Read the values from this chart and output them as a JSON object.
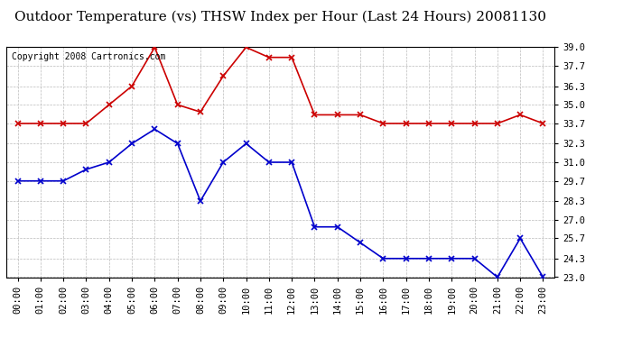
{
  "title": "Outdoor Temperature (vs) THSW Index per Hour (Last 24 Hours) 20081130",
  "copyright": "Copyright 2008 Cartronics.com",
  "hours": [
    "00:00",
    "01:00",
    "02:00",
    "03:00",
    "04:00",
    "05:00",
    "06:00",
    "07:00",
    "08:00",
    "09:00",
    "10:00",
    "11:00",
    "12:00",
    "13:00",
    "14:00",
    "15:00",
    "16:00",
    "17:00",
    "18:00",
    "19:00",
    "20:00",
    "21:00",
    "22:00",
    "23:00"
  ],
  "temp_blue": [
    29.7,
    29.7,
    29.7,
    30.5,
    31.0,
    32.3,
    33.3,
    32.3,
    28.3,
    31.0,
    32.3,
    31.0,
    31.0,
    26.5,
    26.5,
    25.4,
    24.3,
    24.3,
    24.3,
    24.3,
    24.3,
    23.0,
    25.7,
    23.0
  ],
  "thsw_red": [
    33.7,
    33.7,
    33.7,
    33.7,
    35.0,
    36.3,
    39.0,
    35.0,
    34.5,
    37.0,
    39.0,
    38.3,
    38.3,
    34.3,
    34.3,
    34.3,
    33.7,
    33.7,
    33.7,
    33.7,
    33.7,
    33.7,
    34.3,
    33.7
  ],
  "ylim": [
    23.0,
    39.0
  ],
  "yticks": [
    23.0,
    24.3,
    25.7,
    27.0,
    28.3,
    29.7,
    31.0,
    32.3,
    33.7,
    35.0,
    36.3,
    37.7,
    39.0
  ],
  "blue_color": "#0000cc",
  "red_color": "#cc0000",
  "bg_color": "#ffffff",
  "grid_color": "#bbbbbb",
  "title_fontsize": 11,
  "copyright_fontsize": 7,
  "tick_fontsize": 7.5
}
